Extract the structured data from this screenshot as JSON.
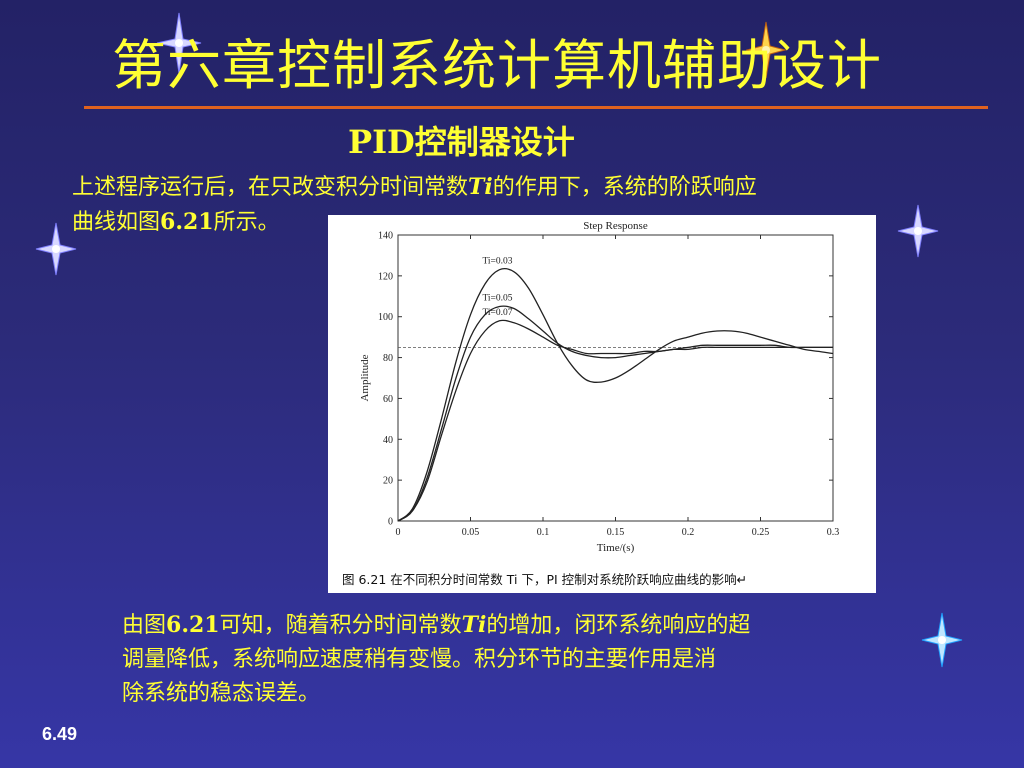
{
  "slide": {
    "title": "第六章控制系统计算机辅助设计",
    "subtitle": "PID控制器设计",
    "para1_pre": "上述程序运行后，在只改变积分时间常数",
    "para1_var": "Ti",
    "para1_post": "的作用下，系统的阶跃响应",
    "para1_line2_pre": "曲线如图",
    "para1_fig": "6.21",
    "para1_line2_post": "所示。",
    "para2_pre": "由图",
    "para2_fig": "6.21",
    "para2_mid": "可知，随着积分时间常数",
    "para2_var": "Ti",
    "para2_post": "的增加，闭环系统响应的超",
    "para2_line2": "调量降低，系统响应速度稍有变慢。积分环节的主要作用是消",
    "para2_line3": "除系统的稳态误差。",
    "page_number": "6.49",
    "colors": {
      "title": "#ffff33",
      "rule": "#e0621f",
      "background": "#2c2b7a"
    }
  },
  "figure": {
    "caption": "图 6.21    在不同积分时间常数 Ti 下，PI 控制对系统阶跃响应曲线的影响↵",
    "return_mark": "↵"
  },
  "chart_data": {
    "type": "line",
    "title": "Step Response",
    "xlabel": "Time/(s)",
    "ylabel": "Amplitude",
    "xlim": [
      0,
      0.3
    ],
    "ylim": [
      0,
      140
    ],
    "xticks": [
      0,
      0.05,
      0.1,
      0.15,
      0.2,
      0.25,
      0.3
    ],
    "xtick_labels": [
      "0",
      "0.05",
      "0.1",
      "0.15",
      "0.2",
      "0.25",
      "0.3"
    ],
    "yticks": [
      0,
      20,
      40,
      60,
      80,
      100,
      120,
      140
    ],
    "ytick_labels": [
      "0",
      "20",
      "40",
      "60",
      "80",
      "100",
      "120",
      "140"
    ],
    "reference_line": 85,
    "series": [
      {
        "name": "Ti=0.03",
        "x": [
          0,
          0.01,
          0.02,
          0.03,
          0.04,
          0.05,
          0.06,
          0.07,
          0.08,
          0.09,
          0.1,
          0.11,
          0.12,
          0.13,
          0.14,
          0.15,
          0.16,
          0.17,
          0.18,
          0.19,
          0.2,
          0.21,
          0.22,
          0.23,
          0.24,
          0.25,
          0.26,
          0.27,
          0.28,
          0.29,
          0.3
        ],
        "y": [
          0,
          6,
          24,
          50,
          78,
          101,
          116,
          123,
          122,
          114,
          101,
          87,
          76,
          69,
          68,
          70,
          74,
          79,
          84,
          88,
          90,
          92,
          93,
          93,
          92,
          90,
          88,
          86,
          84,
          83,
          82
        ]
      },
      {
        "name": "Ti=0.05",
        "x": [
          0,
          0.01,
          0.02,
          0.03,
          0.04,
          0.05,
          0.06,
          0.07,
          0.08,
          0.09,
          0.1,
          0.11,
          0.12,
          0.13,
          0.14,
          0.15,
          0.16,
          0.17,
          0.18,
          0.19,
          0.2,
          0.21,
          0.22,
          0.23,
          0.24,
          0.25,
          0.26,
          0.27,
          0.28,
          0.29,
          0.3
        ],
        "y": [
          0,
          5,
          21,
          45,
          70,
          90,
          101,
          105,
          104,
          99,
          93,
          87,
          83,
          81,
          80,
          80,
          81,
          82,
          83,
          84,
          85,
          86,
          86,
          86,
          86,
          86,
          86,
          85,
          85,
          85,
          85
        ]
      },
      {
        "name": "Ti=0.07",
        "x": [
          0,
          0.01,
          0.02,
          0.03,
          0.04,
          0.05,
          0.06,
          0.07,
          0.08,
          0.09,
          0.1,
          0.11,
          0.12,
          0.13,
          0.14,
          0.15,
          0.16,
          0.17,
          0.18,
          0.19,
          0.2,
          0.21,
          0.22,
          0.23,
          0.24,
          0.25,
          0.26,
          0.27,
          0.28,
          0.29,
          0.3
        ],
        "y": [
          0,
          5,
          19,
          42,
          64,
          82,
          93,
          98,
          97,
          94,
          90,
          86,
          84,
          82,
          82,
          82,
          82,
          83,
          83,
          84,
          84,
          85,
          85,
          85,
          85,
          85,
          85,
          85,
          85,
          85,
          85
        ]
      }
    ]
  }
}
